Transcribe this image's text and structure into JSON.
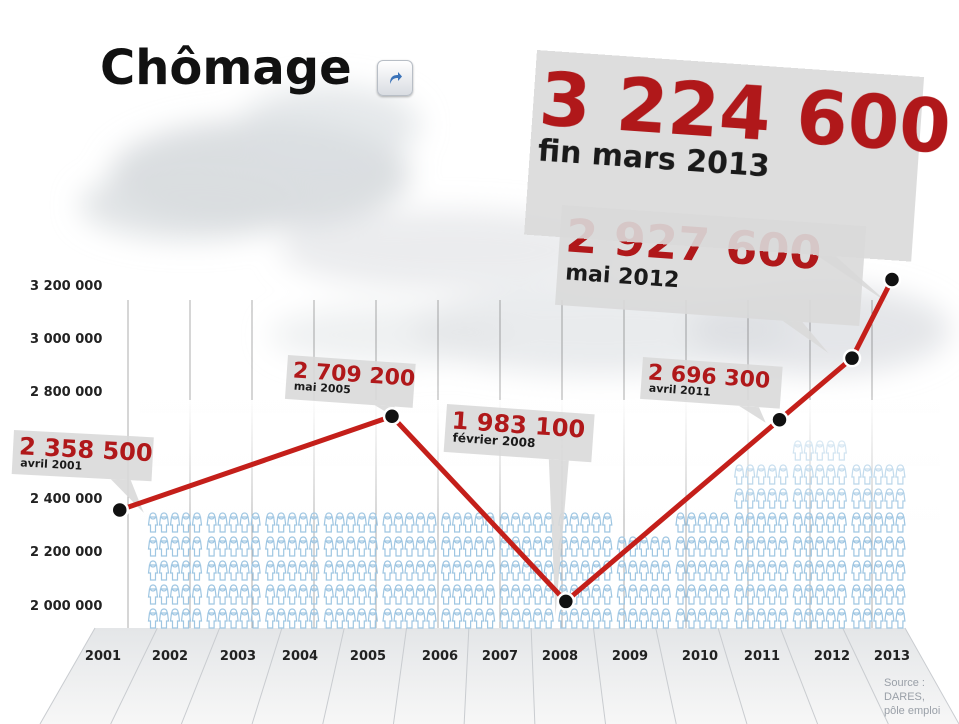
{
  "title": "Chômage",
  "share_icon": "share-arrow-icon",
  "source_lines": [
    "Source :",
    "DARES,",
    "pôle emploi"
  ],
  "colors": {
    "line": "#c41f1a",
    "label_value": "#b0181a",
    "label_bg": "#d9d9d9",
    "people": "#9fc6e2"
  },
  "chart_data": {
    "type": "line",
    "title": "Chômage",
    "xlabel": "",
    "ylabel": "",
    "x_ticks": [
      "2001",
      "2002",
      "2003",
      "2004",
      "2005",
      "2006",
      "2007",
      "2008",
      "2009",
      "2010",
      "2011",
      "2012",
      "2013"
    ],
    "y_ticks": [
      "3 200 000",
      "3 000 000",
      "2 800 000",
      "2 400 000",
      "2 200 000",
      "2 000 000"
    ],
    "series": [
      {
        "points": [
          {
            "x": "2001-04",
            "y": 2358500
          },
          {
            "x": "2005-05",
            "y": 2709200
          },
          {
            "x": "2008-02",
            "y": 1983100
          },
          {
            "x": "2011-04",
            "y": 2696300
          },
          {
            "x": "2012-05",
            "y": 2927600
          },
          {
            "x": "2013-03",
            "y": 3224600
          }
        ]
      }
    ],
    "annotations": [
      {
        "value": "2 358 500",
        "date": "avril 2001"
      },
      {
        "value": "2 709 200",
        "date": "mai 2005"
      },
      {
        "value": "1 983 100",
        "date": "février 2008"
      },
      {
        "value": "2 696 300",
        "date": "avril 2011"
      },
      {
        "value": "2 927 600",
        "date": "mai 2012"
      },
      {
        "value": "3 224 600",
        "date": "fin mars 2013"
      }
    ],
    "grid": true,
    "legend": "none"
  }
}
